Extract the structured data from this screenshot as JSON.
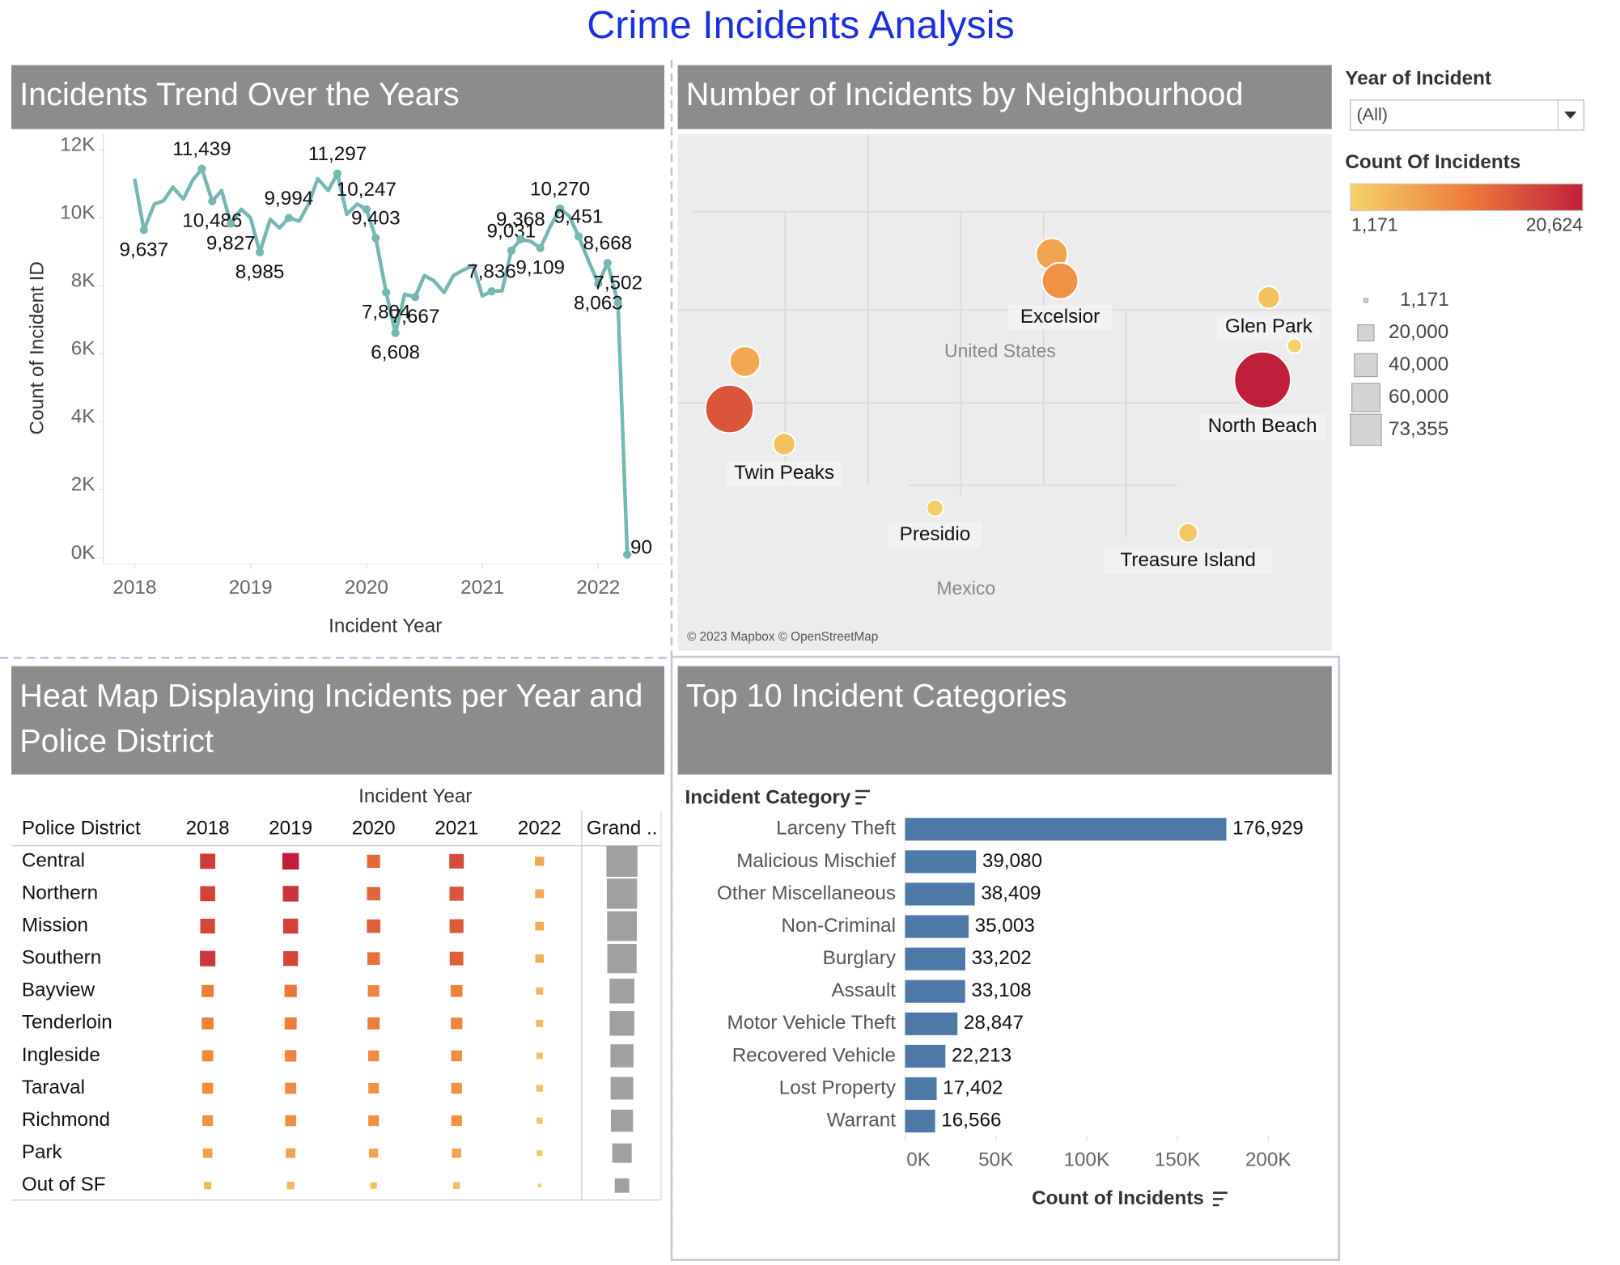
{
  "title": "Crime Incidents Analysis",
  "filter": {
    "label": "Year of Incident",
    "value": "(All)"
  },
  "color_legend": {
    "title": "Count Of Incidents",
    "min": {
      "value": 1171,
      "label": "1,171"
    },
    "max": {
      "value": 20624,
      "label": "20,624"
    },
    "colors": [
      "#f5d36a",
      "#ee7d3a",
      "#c01f3c"
    ]
  },
  "size_legend": {
    "color": "#a6a6a6",
    "items": [
      {
        "value": 1171,
        "label": "1,171"
      },
      {
        "value": 20000,
        "label": "20,000"
      },
      {
        "value": 40000,
        "label": "40,000"
      },
      {
        "value": 60000,
        "label": "60,000"
      },
      {
        "value": 73355,
        "label": "73,355"
      }
    ]
  },
  "chart_data": [
    {
      "type": "line",
      "title": "Incidents Trend Over the Years",
      "x_label": "Incident Year",
      "y_label": "Count of Incident ID",
      "color": "#76b7b2",
      "x": [
        2018,
        2018.08,
        2018.17,
        2018.25,
        2018.33,
        2018.42,
        2018.5,
        2018.58,
        2018.67,
        2018.75,
        2018.83,
        2018.92,
        2019,
        2019.08,
        2019.17,
        2019.25,
        2019.33,
        2019.42,
        2019.5,
        2019.58,
        2019.67,
        2019.75,
        2019.83,
        2019.92,
        2020,
        2020.08,
        2020.17,
        2020.25,
        2020.33,
        2020.42,
        2020.5,
        2020.58,
        2020.67,
        2020.75,
        2020.83,
        2020.92,
        2021,
        2021.08,
        2021.17,
        2021.25,
        2021.33,
        2021.42,
        2021.5,
        2021.58,
        2021.67,
        2021.75,
        2021.83,
        2021.92,
        2022,
        2022.08,
        2022.17,
        2022.25
      ],
      "values": [
        11150,
        9637,
        10400,
        10500,
        10900,
        10550,
        11100,
        11439,
        10486,
        10800,
        9827,
        10250,
        10000,
        8985,
        9950,
        9700,
        9994,
        9900,
        10400,
        11150,
        10800,
        11297,
        10100,
        10400,
        10247,
        9403,
        7804,
        6608,
        7750,
        7667,
        8300,
        8150,
        7800,
        8300,
        8450,
        8600,
        7700,
        7836,
        7850,
        9031,
        9368,
        9300,
        9109,
        9700,
        10270,
        10050,
        9451,
        8700,
        8063,
        8668,
        7502,
        90
      ],
      "value_labels": [
        null,
        "9,637",
        null,
        null,
        null,
        null,
        null,
        "11,439",
        "10,486",
        null,
        "9,827",
        null,
        null,
        "8,985",
        null,
        null,
        "9,994",
        null,
        null,
        null,
        null,
        "11,297",
        null,
        null,
        "10,247",
        "9,403",
        "7,804",
        "6,608",
        null,
        "7,667",
        null,
        null,
        null,
        null,
        null,
        null,
        null,
        "7,836",
        null,
        "9,031",
        "9,368",
        null,
        "9,109",
        null,
        "10,270",
        null,
        "9,451",
        null,
        "8,063",
        "8,668",
        "7,502",
        "90"
      ],
      "xlim": [
        2017.73,
        2022.57
      ],
      "xticks": [
        2018,
        2019,
        2020,
        2021,
        2022
      ],
      "ylim": [
        0,
        12000
      ],
      "yticks": [
        {
          "value": 0,
          "label": "0K"
        },
        {
          "value": 2000,
          "label": "2K"
        },
        {
          "value": 4000,
          "label": "4K"
        },
        {
          "value": 6000,
          "label": "6K"
        },
        {
          "value": 8000,
          "label": "8K"
        },
        {
          "value": 10000,
          "label": "10K"
        },
        {
          "value": 12000,
          "label": "12K"
        }
      ]
    },
    {
      "type": "map",
      "title": "Number of Incidents by Neighbourhood",
      "attribution": "© 2023 Mapbox © OpenStreetMap",
      "country_labels": [
        {
          "text": "United States",
          "lon": -96.56,
          "lat": 38.62
        },
        {
          "text": "Mexico",
          "lon": -99.61,
          "lat": 21.06
        }
      ],
      "points": [
        {
          "name": null,
          "lon": -120.75,
          "lat": 34.42,
          "value": 15000
        },
        {
          "name": null,
          "lon": -119.37,
          "lat": 37.93,
          "value": 6000
        },
        {
          "name": "Twin Peaks",
          "lon": -115.86,
          "lat": 31.82,
          "value": 3200
        },
        {
          "name": null,
          "lon": -91.94,
          "lat": 45.87,
          "value": 6500
        },
        {
          "name": "Excelsior",
          "lon": -91.2,
          "lat": 43.89,
          "value": 8500
        },
        {
          "name": "Glen Park",
          "lon": -72.55,
          "lat": 42.66,
          "value": 3200
        },
        {
          "name": null,
          "lon": -70.24,
          "lat": 39.08,
          "value": 1400
        },
        {
          "name": "North Beach",
          "lon": -73.11,
          "lat": 36.56,
          "value": 20624
        },
        {
          "name": "Presidio",
          "lon": -102.38,
          "lat": 27.09,
          "value": 1800
        },
        {
          "name": "Treasure Island",
          "lon": -79.76,
          "lat": 25.26,
          "value": 2400
        }
      ]
    },
    {
      "type": "heatmap",
      "title": "Heat Map Displaying Incidents per Year and Police District",
      "x_label": "Incident Year",
      "y_label": "Police District",
      "total_label": "Grand ..",
      "columns": [
        2018,
        2019,
        2020,
        2021,
        2022
      ],
      "rows": [
        "Central",
        "Northern",
        "Mission",
        "Southern",
        "Bayview",
        "Tenderloin",
        "Ingleside",
        "Taraval",
        "Richmond",
        "Park",
        "Out of SF"
      ],
      "values": [
        [
          17500,
          20624,
          13000,
          16000,
          6231
        ],
        [
          17000,
          18500,
          13500,
          15000,
          5800
        ],
        [
          16500,
          17000,
          13800,
          14500,
          5600
        ],
        [
          18000,
          16500,
          12000,
          14000,
          5400
        ],
        [
          11000,
          11500,
          10000,
          10500,
          4000
        ],
        [
          10500,
          11000,
          11000,
          10000,
          3900
        ],
        [
          9500,
          10000,
          9000,
          9000,
          3000
        ],
        [
          9000,
          9500,
          8500,
          8800,
          3300
        ],
        [
          8500,
          9000,
          8500,
          8500,
          2900
        ],
        [
          6800,
          6900,
          6200,
          6500,
          2500
        ],
        [
          4000,
          4200,
          3200,
          3500,
          1171
        ]
      ],
      "totals": [
        73355,
        69800,
        67400,
        65900,
        47000,
        46400,
        40500,
        39100,
        37400,
        28900,
        16071
      ]
    },
    {
      "type": "bar",
      "title": "Top 10 Incident Categories",
      "y_label": "Incident Category",
      "x_label": "Count of Incidents",
      "color": "#4e79a7",
      "categories": [
        "Larceny Theft",
        "Malicious Mischief",
        "Other Miscellaneous",
        "Non-Criminal",
        "Burglary",
        "Assault",
        "Motor Vehicle Theft",
        "Recovered Vehicle",
        "Lost Property",
        "Warrant"
      ],
      "values": [
        176929,
        39080,
        38409,
        35003,
        33202,
        33108,
        28847,
        22213,
        17402,
        16566
      ],
      "value_labels": [
        "176,929",
        "39,080",
        "38,409",
        "35,003",
        "33,202",
        "33,108",
        "28,847",
        "22,213",
        "17,402",
        "16,566"
      ],
      "xlim": [
        0,
        235000
      ],
      "xticks": [
        {
          "value": 0,
          "label": "0K"
        },
        {
          "value": 50000,
          "label": "50K"
        },
        {
          "value": 100000,
          "label": "100K"
        },
        {
          "value": 150000,
          "label": "150K"
        },
        {
          "value": 200000,
          "label": "200K"
        }
      ]
    }
  ]
}
